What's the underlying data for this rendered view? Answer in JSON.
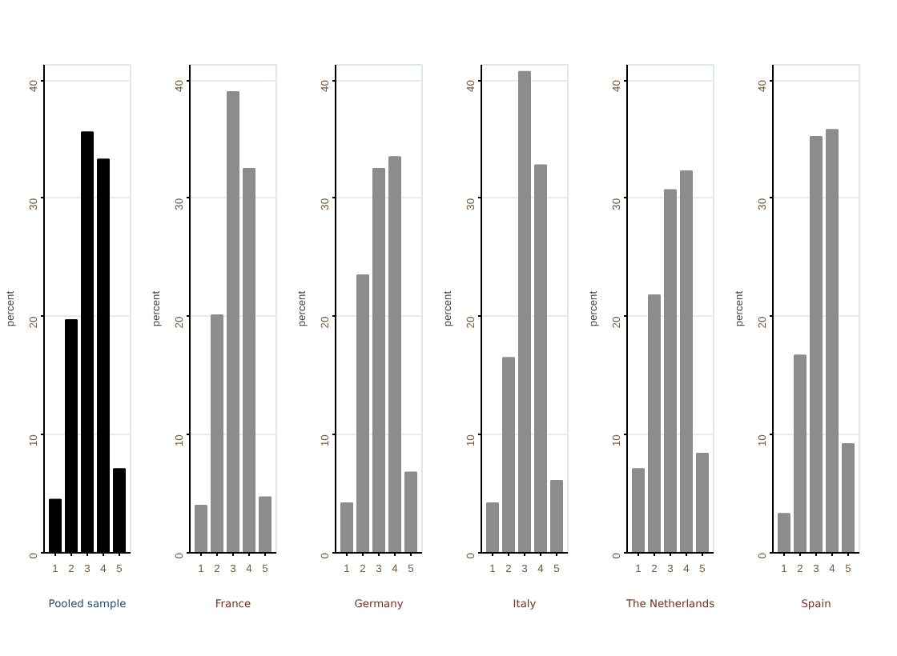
{
  "chart_data": [
    {
      "type": "bar",
      "title": "Pooled sample",
      "ylabel": "percent",
      "categories": [
        "1",
        "2",
        "3",
        "4",
        "5"
      ],
      "values": [
        4.5,
        19.7,
        35.6,
        33.3,
        7.1
      ],
      "color": "#000000",
      "ylim": [
        0,
        41.3
      ],
      "yticks": [
        0,
        10,
        20,
        30,
        40
      ],
      "grid": "y"
    },
    {
      "type": "bar",
      "title": "France",
      "ylabel": "percent",
      "categories": [
        "1",
        "2",
        "3",
        "4",
        "5"
      ],
      "values": [
        4.0,
        20.1,
        39.0,
        32.5,
        4.7
      ],
      "color": "#8c8c8c",
      "ylim": [
        0,
        41.3
      ],
      "yticks": [
        0,
        10,
        20,
        30,
        40
      ],
      "grid": "y"
    },
    {
      "type": "bar",
      "title": "Germany",
      "ylabel": "percent",
      "categories": [
        "1",
        "2",
        "3",
        "4",
        "5"
      ],
      "values": [
        4.2,
        23.5,
        32.5,
        33.5,
        6.8
      ],
      "color": "#8c8c8c",
      "ylim": [
        0,
        41.3
      ],
      "yticks": [
        0,
        10,
        20,
        30,
        40
      ],
      "grid": "y"
    },
    {
      "type": "bar",
      "title": "Italy",
      "ylabel": "percent",
      "categories": [
        "1",
        "2",
        "3",
        "4",
        "5"
      ],
      "values": [
        4.2,
        16.5,
        40.7,
        32.8,
        6.1
      ],
      "color": "#8c8c8c",
      "ylim": [
        0,
        41.3
      ],
      "yticks": [
        0,
        10,
        20,
        30,
        40
      ],
      "grid": "y"
    },
    {
      "type": "bar",
      "title": "The Netherlands",
      "ylabel": "percent",
      "categories": [
        "1",
        "2",
        "3",
        "4",
        "5"
      ],
      "values": [
        7.1,
        21.8,
        30.7,
        32.3,
        8.4
      ],
      "color": "#8c8c8c",
      "ylim": [
        0,
        41.3
      ],
      "yticks": [
        0,
        10,
        20,
        30,
        40
      ],
      "grid": "y"
    },
    {
      "type": "bar",
      "title": "Spain",
      "ylabel": "percent",
      "categories": [
        "1",
        "2",
        "3",
        "4",
        "5"
      ],
      "values": [
        3.3,
        16.7,
        35.2,
        35.8,
        9.2
      ],
      "color": "#8c8c8c",
      "ylim": [
        0,
        41.3
      ],
      "yticks": [
        0,
        10,
        20,
        30,
        40
      ],
      "grid": "y"
    }
  ]
}
